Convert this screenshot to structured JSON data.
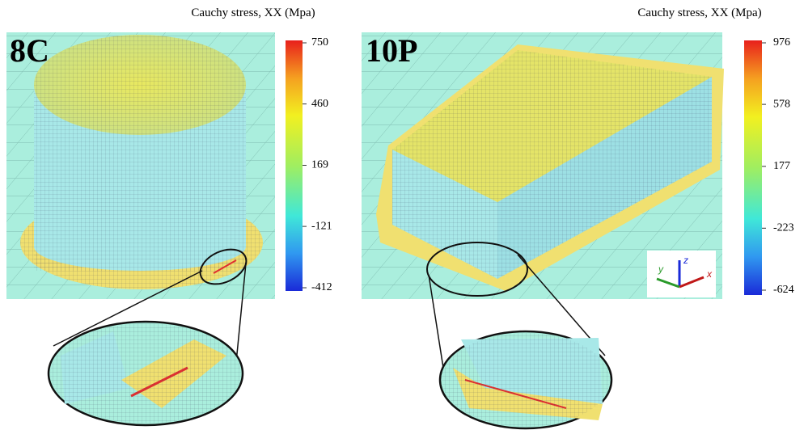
{
  "panels": [
    {
      "label": "8C",
      "colorbar": {
        "title": "Cauchy stress, XX (Mpa)",
        "ticks": [
          750,
          460,
          169,
          -121,
          -412
        ]
      }
    },
    {
      "label": "10P",
      "colorbar": {
        "title": "Cauchy stress, XX (Mpa)",
        "ticks": [
          976,
          578,
          177,
          -223,
          -624
        ]
      }
    }
  ],
  "axes": {
    "x": "x",
    "y": "y",
    "z": "z"
  }
}
